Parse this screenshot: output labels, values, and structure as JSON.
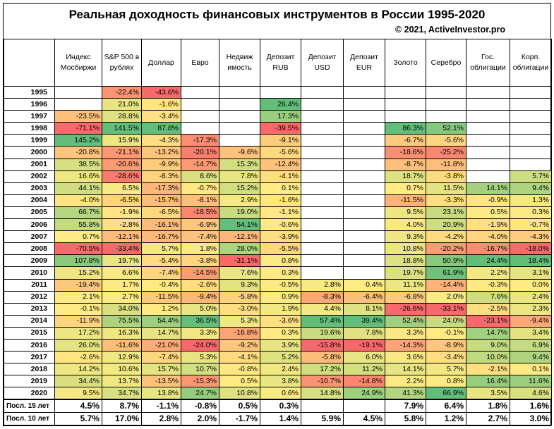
{
  "title": "Реальная доходность финансовых инструментов в России 1995-2020",
  "copyright": "© 2021, ActiveInvestor.pro",
  "chart_data": {
    "type": "table",
    "columns": [
      "Индекс Мосбиржи",
      "S&P 500 в рублях",
      "Доллар",
      "Евро",
      "Недвиж имость",
      "Депозит RUB",
      "Депозит USD",
      "Депозит EUR",
      "Золото",
      "Серебро",
      "Гос. облигации",
      "Корп. облигации"
    ],
    "rows": [
      {
        "label": "1995",
        "values": [
          "",
          "-22.4%",
          "-43.6%",
          "",
          "",
          "",
          "",
          "",
          "",
          "",
          "",
          ""
        ]
      },
      {
        "label": "1996",
        "values": [
          "",
          "21.0%",
          "-1.6%",
          "",
          "",
          "26.4%",
          "",
          "",
          "",
          "",
          "",
          ""
        ]
      },
      {
        "label": "1997",
        "values": [
          "-23.5%",
          "28.8%",
          "-3.4%",
          "",
          "",
          "17.3%",
          "",
          "",
          "",
          "",
          "",
          ""
        ]
      },
      {
        "label": "1998",
        "values": [
          "-71.1%",
          "141.5%",
          "87.8%",
          "",
          "",
          "-39.5%",
          "",
          "",
          "86.3%",
          "52.1%",
          "",
          ""
        ]
      },
      {
        "label": "1999",
        "values": [
          "145.2%",
          "15.9%",
          "-4.3%",
          "-17.3%",
          "",
          "-9.1%",
          "",
          "",
          "-6.7%",
          "-5.6%",
          "",
          ""
        ]
      },
      {
        "label": "2000",
        "values": [
          "-20.8%",
          "-21.1%",
          "-13.2%",
          "-20.1%",
          "-9.6%",
          "-5.6%",
          "",
          "",
          "-18.6%",
          "-25.2%",
          "",
          ""
        ]
      },
      {
        "label": "2001",
        "values": [
          "38.5%",
          "-20.6%",
          "-9.9%",
          "-14.7%",
          "15.3%",
          "-12.4%",
          "",
          "",
          "-8.7%",
          "-11.8%",
          "",
          ""
        ]
      },
      {
        "label": "2002",
        "values": [
          "16.6%",
          "-28.6%",
          "-8.3%",
          "8.6%",
          "7.8%",
          "-4.1%",
          "",
          "",
          "18.7%",
          "-3.8%",
          "",
          "5.7%"
        ]
      },
      {
        "label": "2003",
        "values": [
          "44.1%",
          "6.5%",
          "-17.3%",
          "-0.7%",
          "15.2%",
          "0.1%",
          "",
          "",
          "0.7%",
          "11.5%",
          "14.1%",
          "9.4%"
        ]
      },
      {
        "label": "2004",
        "values": [
          "-4.0%",
          "-6.5%",
          "-15.7%",
          "-8.1%",
          "2.9%",
          "-1.6%",
          "",
          "",
          "-11.5%",
          "-3.3%",
          "-0.9%",
          "1.3%"
        ]
      },
      {
        "label": "2005",
        "values": [
          "66.7%",
          "-1.9%",
          "-6.5%",
          "-18.5%",
          "19.0%",
          "-1.1%",
          "",
          "",
          "9.5%",
          "23.1%",
          "0.5%",
          "0.3%"
        ]
      },
      {
        "label": "2006",
        "values": [
          "55.8%",
          "-2.8%",
          "-16.1%",
          "-6.9%",
          "54.1%",
          "-0.6%",
          "",
          "",
          "4.0%",
          "20.9%",
          "-1.9%",
          "-0.7%"
        ]
      },
      {
        "label": "2007",
        "values": [
          "0.7%",
          "-12.1%",
          "-16.7%",
          "-7.4%",
          "-12.1%",
          "-3.9%",
          "",
          "",
          "9.3%",
          "-4.2%",
          "-4.0%",
          "-4.3%"
        ]
      },
      {
        "label": "2008",
        "values": [
          "-70.5%",
          "-33.4%",
          "5.7%",
          "1.8%",
          "28.0%",
          "-5.5%",
          "",
          "",
          "10.8%",
          "-20.2%",
          "-16.7%",
          "-18.0%"
        ]
      },
      {
        "label": "2009",
        "values": [
          "107.8%",
          "19.7%",
          "-5.4%",
          "-3.8%",
          "-31.1%",
          "0.8%",
          "",
          "",
          "18.8%",
          "50.9%",
          "24.4%",
          "18.4%"
        ]
      },
      {
        "label": "2010",
        "values": [
          "15.2%",
          "6.6%",
          "-7.4%",
          "-14.5%",
          "7.6%",
          "0.3%",
          "",
          "",
          "19.7%",
          "61.9%",
          "2.2%",
          "3.1%"
        ]
      },
      {
        "label": "2011",
        "values": [
          "-19.4%",
          "1.7%",
          "-0.4%",
          "-2.6%",
          "9.3%",
          "-0.5%",
          "2.8%",
          "0.4%",
          "11.1%",
          "-14.4%",
          "-0.3%",
          "0.0%"
        ]
      },
      {
        "label": "2012",
        "values": [
          "2.1%",
          "2.7%",
          "-11.5%",
          "-9.4%",
          "-5.8%",
          "0.9%",
          "-8.3%",
          "-6.4%",
          "-6.8%",
          "2.0%",
          "7.6%",
          "2.4%"
        ]
      },
      {
        "label": "2013",
        "values": [
          "-0.1%",
          "34.0%",
          "1.2%",
          "5.0%",
          "-3.0%",
          "1.9%",
          "4.4%",
          "8.1%",
          "-26.6%",
          "-33.1%",
          "-2.5%",
          "2.3%"
        ]
      },
      {
        "label": "2014",
        "values": [
          "-11.9%",
          "75.5%",
          "54.4%",
          "36.5%",
          "5.3%",
          "-3.6%",
          "57.4%",
          "39.4%",
          "52.4%",
          "24.0%",
          "-23.1%",
          "-9.4%"
        ]
      },
      {
        "label": "2015",
        "values": [
          "17.2%",
          "16.3%",
          "14.7%",
          "3.3%",
          "-16.8%",
          "0.3%",
          "19.6%",
          "7.8%",
          "3.3%",
          "-0.1%",
          "14.7%",
          "3.4%"
        ]
      },
      {
        "label": "2016",
        "values": [
          "26.0%",
          "-11.6%",
          "-21.0%",
          "-24.0%",
          "-9.2%",
          "3.9%",
          "-15.8%",
          "-19.1%",
          "-14.3%",
          "-8.9%",
          "9.0%",
          "6.9%"
        ]
      },
      {
        "label": "2017",
        "values": [
          "-2.6%",
          "12.9%",
          "-7.4%",
          "5.3%",
          "-4.1%",
          "5.2%",
          "-5.8%",
          "6.0%",
          "3.6%",
          "-3.4%",
          "10.0%",
          "9.4%"
        ]
      },
      {
        "label": "2018",
        "values": [
          "14.2%",
          "10.6%",
          "15.7%",
          "10.7%",
          "-0.8%",
          "2.4%",
          "17.2%",
          "11.2%",
          "14.1%",
          "5.7%",
          "-2.1%",
          "0.1%"
        ]
      },
      {
        "label": "2019",
        "values": [
          "34.4%",
          "13.7%",
          "-13.5%",
          "-15.3%",
          "0.5%",
          "3.8%",
          "-10.7%",
          "-14.8%",
          "2.2%",
          "0.8%",
          "16.4%",
          "11.6%"
        ]
      },
      {
        "label": "2020",
        "values": [
          "9.5%",
          "34.7%",
          "13.8%",
          "24.7%",
          "10.8%",
          "0.6%",
          "14.8%",
          "24.9%",
          "41.3%",
          "66.9%",
          "3.5%",
          "4.6%"
        ]
      }
    ],
    "summary_rows": [
      {
        "label": "Посл. 15 лет",
        "values": [
          "4.5%",
          "8.7%",
          "-1.1%",
          "-0.8%",
          "0.5%",
          "0.3%",
          "",
          "",
          "7.9%",
          "6.4%",
          "1.8%",
          "1.6%"
        ]
      },
      {
        "label": "Посл. 10 лет",
        "values": [
          "5.7%",
          "17.0%",
          "2.8%",
          "2.0%",
          "-1.7%",
          "1.4%",
          "5.9%",
          "4.5%",
          "5.8%",
          "1.2%",
          "2.7%",
          "3.0%"
        ]
      }
    ],
    "color_scale": {
      "negative_max": "#f8696b",
      "neutral": "#ffeb84",
      "positive_max": "#63be7b"
    }
  }
}
